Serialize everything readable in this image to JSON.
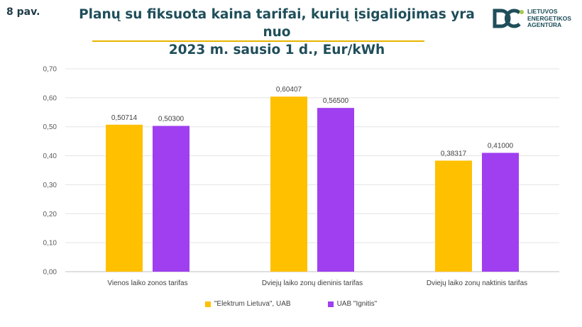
{
  "figure_label": "8 pav.",
  "title_lines": [
    "Planų su fiksuota kaina tarifai, kurių įsigaliojimas yra nuo",
    "2023 m. sausio 1 d., Eur/kWh"
  ],
  "logo": {
    "icon": "dc-logo-mark",
    "lines": [
      "LIETUVOS",
      "ENERGETIKOS",
      "AGENTŪRA"
    ]
  },
  "colors": {
    "series_1": "#ffc000",
    "series_2": "#a03ff0",
    "accent": "#1f4e5a"
  },
  "chart_data": {
    "type": "bar",
    "categories": [
      "Vienos laiko zonos tarifas",
      "Dviejų laiko zonų dieninis tarifas",
      "Dviejų laiko zonų naktinis tarifas"
    ],
    "series": [
      {
        "name": "\"Elektrum Lietuva\", UAB",
        "values": [
          0.50714,
          0.60407,
          0.38317
        ],
        "labels": [
          "0,50714",
          "0,60407",
          "0,38317"
        ]
      },
      {
        "name": "UAB \"Ignitis\"",
        "values": [
          0.503,
          0.565,
          0.41
        ],
        "labels": [
          "0,50300",
          "0,56500",
          "0,41000"
        ]
      }
    ],
    "ylim": [
      0,
      0.7
    ],
    "yticks": [
      "0,00",
      "0,10",
      "0,20",
      "0,30",
      "0,40",
      "0,50",
      "0,60",
      "0,70"
    ],
    "grid": true,
    "legend": "bottom"
  }
}
